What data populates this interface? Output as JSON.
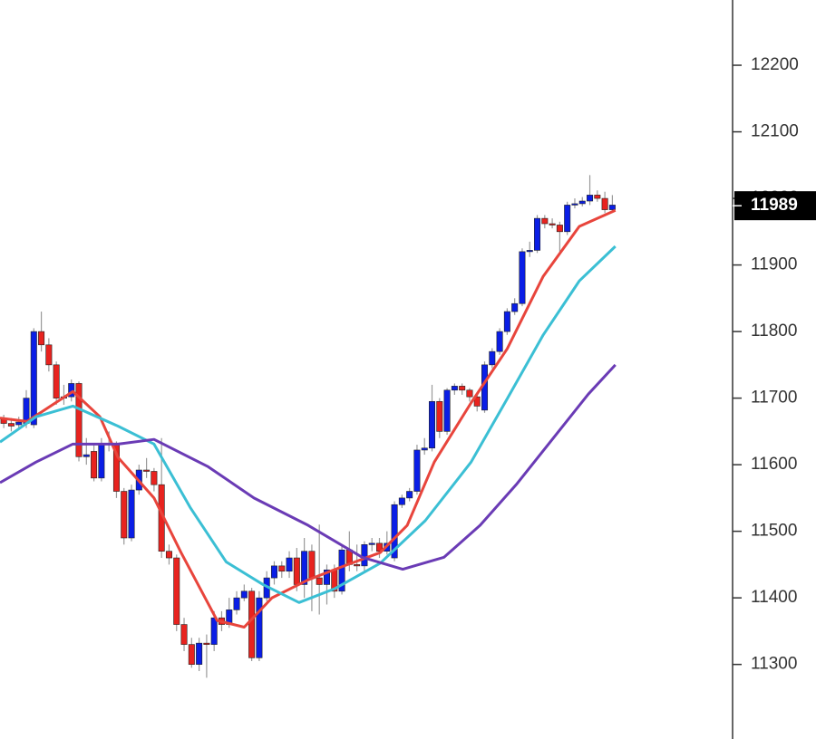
{
  "chart_data": {
    "type": "candlestick",
    "xlim": [
      -0.5,
      97
    ],
    "ylim": [
      11188,
      12298
    ],
    "yticks": [
      11300,
      11400,
      11500,
      11600,
      11700,
      11800,
      11900,
      12000,
      12100,
      12200
    ],
    "last_price": 11989,
    "up_color": "#0a1ee6",
    "down_color": "#e8231f",
    "wick_color": "#999999",
    "open": [
      11668,
      11662,
      11660,
      11662,
      11660,
      11800,
      11780,
      11750,
      11700,
      11702,
      11722,
      11612,
      11620,
      11580,
      11630,
      11630,
      11560,
      11490,
      11562,
      11592,
      11590,
      11570,
      11470,
      11460,
      11360,
      11330,
      11300,
      11332,
      11330,
      11370,
      11360,
      11382,
      11400,
      11410,
      11310,
      11400,
      11430,
      11448,
      11440,
      11460,
      11420,
      11470,
      11430,
      11420,
      11442,
      11410,
      11472,
      11450,
      11448,
      11480,
      11482,
      11470,
      11460,
      11540,
      11550,
      11560,
      11622,
      11625,
      11695,
      11650,
      11712,
      11718,
      11712,
      11702,
      11682,
      11750,
      11770,
      11800,
      11830,
      11842,
      11920,
      11922,
      11970,
      11962,
      11960,
      11950,
      11990,
      11992,
      11996,
      12005,
      12000,
      11983
    ],
    "high": [
      11675,
      11670,
      11672,
      11712,
      11805,
      11830,
      11790,
      11755,
      11720,
      11728,
      11725,
      11640,
      11630,
      11640,
      11650,
      11635,
      11565,
      11570,
      11600,
      11610,
      11595,
      11640,
      11480,
      11465,
      11370,
      11340,
      11340,
      11345,
      11380,
      11380,
      11400,
      11410,
      11420,
      11415,
      11410,
      11440,
      11455,
      11455,
      11470,
      11475,
      11490,
      11480,
      11510,
      11450,
      11450,
      11480,
      11500,
      11480,
      11485,
      11490,
      11490,
      11500,
      11545,
      11555,
      11565,
      11630,
      11640,
      11720,
      11700,
      11715,
      11722,
      11722,
      11715,
      11705,
      11755,
      11775,
      11805,
      11835,
      11850,
      11925,
      11935,
      11975,
      11975,
      11970,
      11965,
      11995,
      12000,
      12002,
      12035,
      12012,
      12010,
      12005
    ],
    "low": [
      11655,
      11650,
      11652,
      11655,
      11655,
      11770,
      11740,
      11690,
      11690,
      11695,
      11605,
      11600,
      11575,
      11575,
      11620,
      11550,
      11480,
      11485,
      11555,
      11580,
      11560,
      11460,
      11450,
      11350,
      11320,
      11295,
      11290,
      11280,
      11320,
      11350,
      11355,
      11375,
      11395,
      11305,
      11305,
      11395,
      11420,
      11430,
      11430,
      11410,
      11400,
      11380,
      11375,
      11390,
      11400,
      11405,
      11440,
      11440,
      11440,
      11470,
      11460,
      11465,
      11455,
      11535,
      11545,
      11555,
      11615,
      11620,
      11640,
      11645,
      11705,
      11705,
      11695,
      11680,
      11678,
      11745,
      11765,
      11795,
      11825,
      11838,
      11912,
      11918,
      11955,
      11955,
      11920,
      11945,
      11985,
      11988,
      11990,
      11995,
      11978,
      11980
    ],
    "close": [
      11662,
      11658,
      11664,
      11700,
      11800,
      11780,
      11750,
      11700,
      11702,
      11722,
      11612,
      11615,
      11580,
      11630,
      11632,
      11560,
      11490,
      11562,
      11592,
      11590,
      11570,
      11470,
      11460,
      11360,
      11330,
      11300,
      11332,
      11330,
      11370,
      11360,
      11382,
      11400,
      11410,
      11310,
      11400,
      11430,
      11448,
      11440,
      11460,
      11420,
      11470,
      11430,
      11420,
      11442,
      11410,
      11472,
      11450,
      11448,
      11480,
      11482,
      11470,
      11482,
      11540,
      11550,
      11560,
      11622,
      11625,
      11695,
      11650,
      11712,
      11718,
      11712,
      11702,
      11688,
      11750,
      11770,
      11800,
      11830,
      11842,
      11920,
      11922,
      11970,
      11962,
      11960,
      11950,
      11990,
      11992,
      11996,
      12005,
      12000,
      11983,
      11990
    ],
    "series": [
      {
        "color": "#e8453c",
        "x": [
          -0.5,
          3.1,
          9.2,
          12.8,
          15.2,
          20,
          23.6,
          28.4,
          32,
          35.7,
          40.5,
          45.3,
          50.1,
          53.7,
          57.3,
          62.2,
          67,
          71.8,
          76.6,
          81.4
        ],
        "values": [
          11670,
          11665,
          11710,
          11672,
          11611,
          11550,
          11468,
          11366,
          11356,
          11400,
          11427,
          11448,
          11468,
          11509,
          11604,
          11693,
          11774,
          11883,
          11958,
          11982
        ]
      },
      {
        "color": "#3bbfd4",
        "x": [
          -0.5,
          4.3,
          9.2,
          15.2,
          20,
          24.8,
          29.6,
          34.5,
          39.3,
          44.1,
          50.1,
          56.1,
          62.2,
          67,
          71.8,
          76.6,
          81.4
        ],
        "values": [
          11634,
          11672,
          11688,
          11658,
          11631,
          11536,
          11454,
          11420,
          11393,
          11414,
          11452,
          11516,
          11604,
          11699,
          11795,
          11876,
          11928
        ]
      },
      {
        "color": "#6a3bb5",
        "x": [
          -0.5,
          4.3,
          9.2,
          15.2,
          20,
          27.2,
          33.3,
          40.5,
          47.7,
          53.1,
          58.6,
          63.4,
          68.2,
          73,
          77.8,
          81.4
        ],
        "values": [
          11573,
          11604,
          11631,
          11631,
          11638,
          11597,
          11550,
          11509,
          11461,
          11443,
          11461,
          11509,
          11570,
          11638,
          11706,
          11750
        ]
      }
    ]
  }
}
